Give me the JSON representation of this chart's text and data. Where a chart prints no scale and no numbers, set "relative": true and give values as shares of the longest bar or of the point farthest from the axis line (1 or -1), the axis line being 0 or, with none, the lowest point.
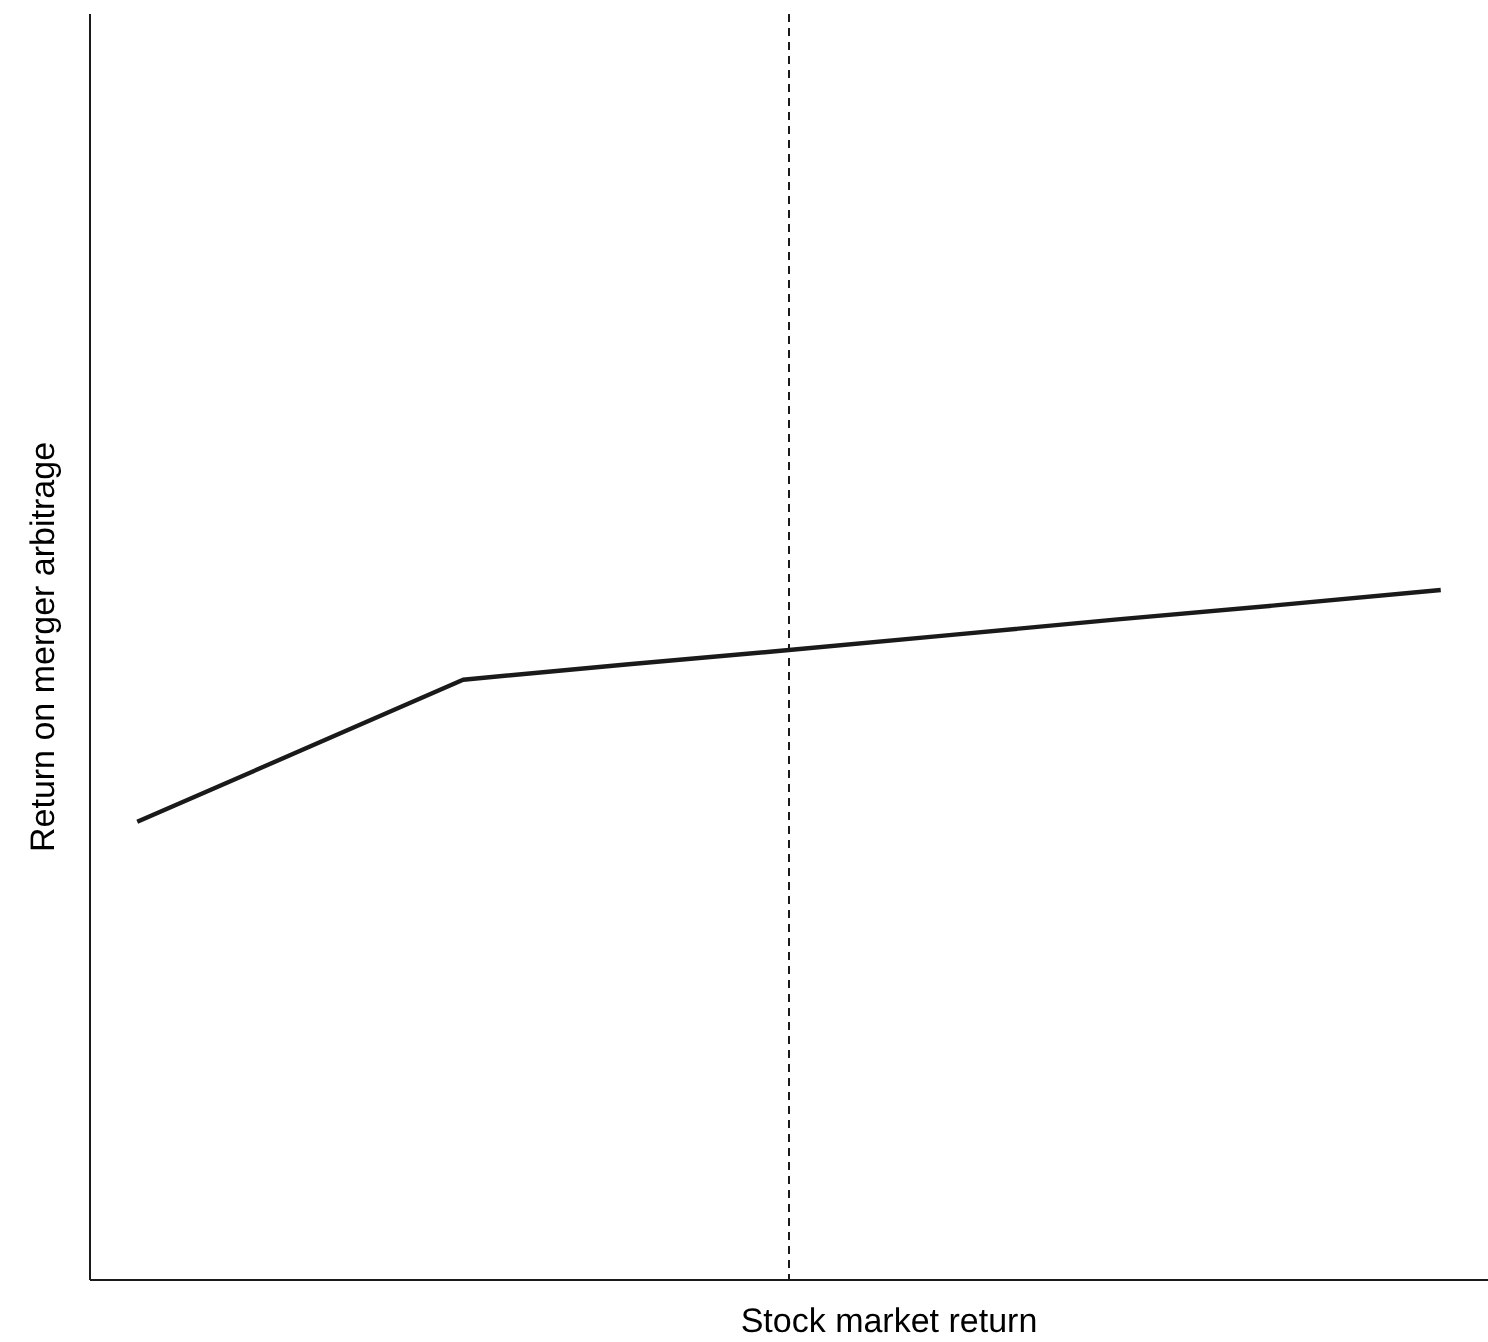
{
  "chart_data": {
    "type": "line",
    "relative": true,
    "xlabel": "Stock market return",
    "ylabel": "Return on merger arbitrage",
    "categories": [
      null,
      null,
      null,
      null,
      null,
      null,
      null,
      null,
      null
    ],
    "series": [
      {
        "color": "#1a1a1a",
        "values": [
          0.664,
          0.767,
          0.87,
          0.892,
          0.913,
          0.935,
          0.957,
          0.978,
          1
        ],
        "line_style": "solid"
      }
    ]
  }
}
